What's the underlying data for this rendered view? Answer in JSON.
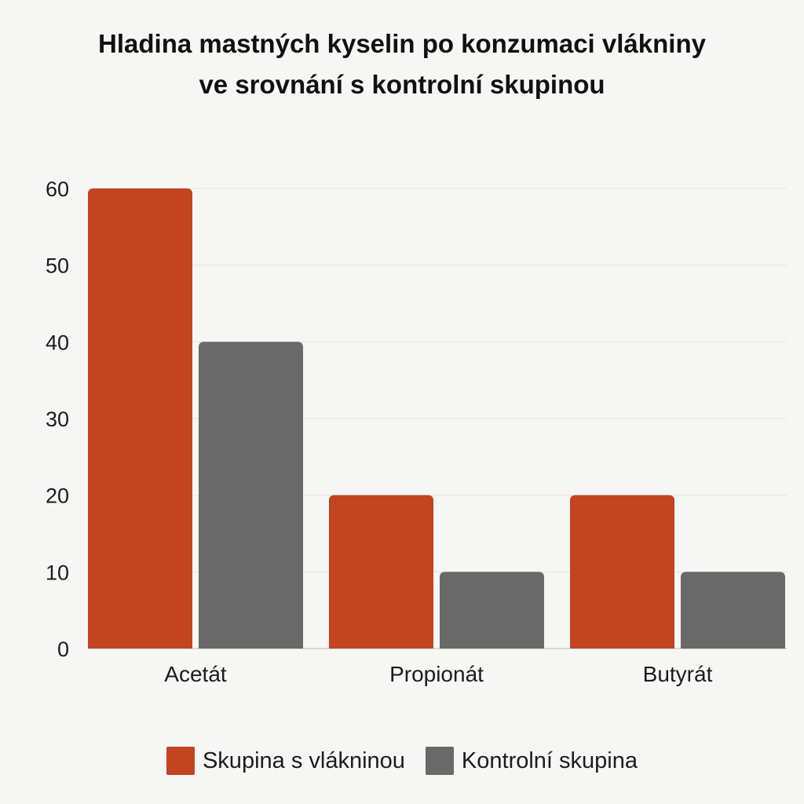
{
  "chart_data": {
    "type": "bar",
    "title_lines": [
      "Hladina mastných kyselin po konzumaci vlákniny",
      "ve srovnání s kontrolní skupinou"
    ],
    "categories": [
      "Acetát",
      "Propionát",
      "Butyrát"
    ],
    "series": [
      {
        "name": "Skupina s vlákninou",
        "values": [
          60,
          20,
          20
        ],
        "color": "#c24420"
      },
      {
        "name": "Kontrolní skupina",
        "values": [
          40,
          10,
          10
        ],
        "color": "#696969"
      }
    ],
    "y_ticks": [
      0,
      10,
      20,
      30,
      40,
      50,
      60
    ],
    "ylim": [
      0,
      60
    ],
    "grid": true,
    "legend_position": "bottom"
  }
}
